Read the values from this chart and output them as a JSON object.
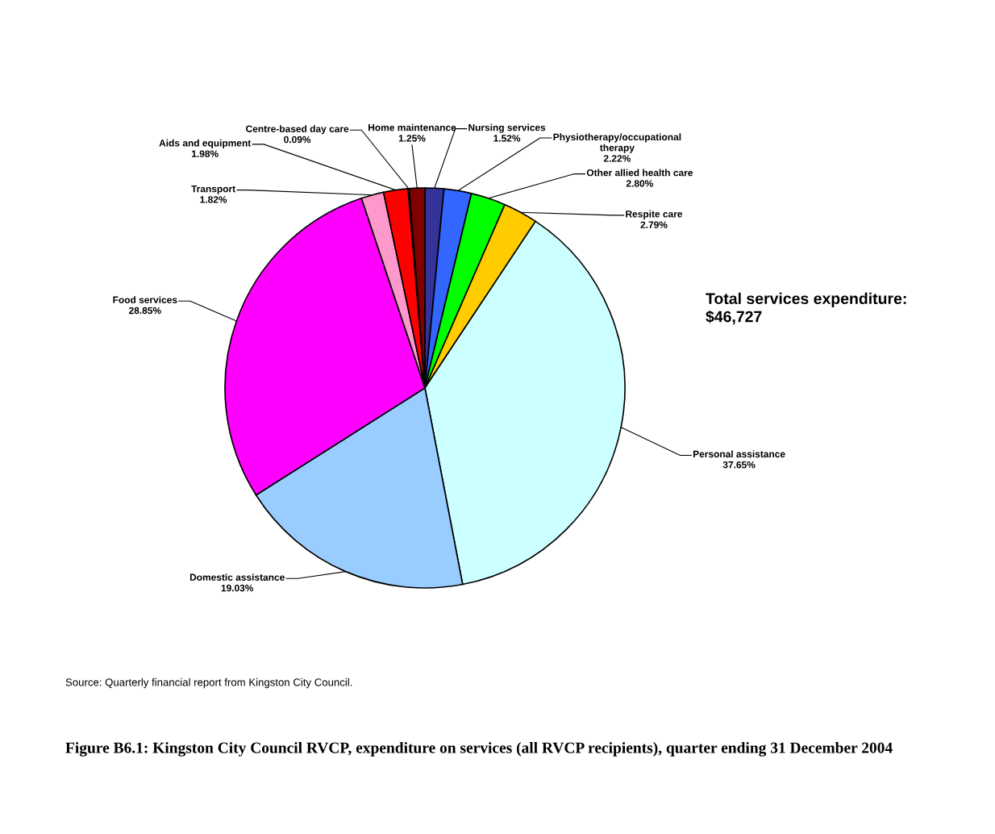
{
  "chart_data": {
    "type": "pie",
    "title": "Figure B6.1: Kingston City Council RVCP, expenditure on services (all RVCP recipients), quarter ending 31 December 2004",
    "categories": [
      "Nursing services",
      "Physiotherapy/occupational\ntherapy",
      "Other allied health care",
      "Respite care",
      "Personal assistance",
      "Domestic assistance",
      "Food services",
      "Transport",
      "Aids and equipment",
      "Centre-based day care",
      "Home maintenance"
    ],
    "values": [
      1.52,
      2.22,
      2.8,
      2.79,
      37.65,
      19.03,
      28.85,
      1.82,
      1.98,
      0.09,
      1.25
    ],
    "colors": [
      "#333399",
      "#3366ff",
      "#00ff00",
      "#ffcc00",
      "#ccffff",
      "#99ccff",
      "#ff00ff",
      "#ff99cc",
      "#ff0000",
      "#c0c0c0",
      "#800000"
    ],
    "value_labels": [
      "1.52%",
      "2.22%",
      "2.80%",
      "2.79%",
      "37.65%",
      "19.03%",
      "28.85%",
      "1.82%",
      "1.98%",
      "0.09%",
      "1.25%"
    ],
    "legend": false,
    "annotations": [
      "Total services expenditure:\n$46,727",
      "Source: Quarterly financial report from Kingston City Council."
    ]
  }
}
